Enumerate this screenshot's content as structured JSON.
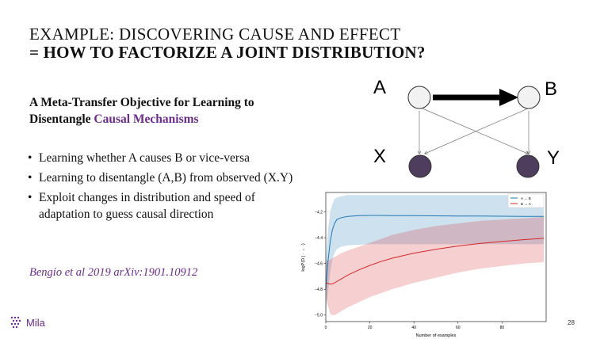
{
  "slide": {
    "title_line1": "EXAMPLE: DISCOVERING CAUSE AND EFFECT",
    "title_line2": "= HOW TO FACTORIZE A JOINT DISTRIBUTION?",
    "subtitle_line1": "A Meta-Transfer Objective for Learning to",
    "subtitle_line2_plain": "Disentangle ",
    "subtitle_line2_accent": "Causal Mechanisms",
    "bullets": [
      "Learning whether A causes B or vice-versa",
      "Learning to disentangle (A,B) from observed (X.Y)",
      "Exploit changes in distribution and speed of adaptation to guess causal direction"
    ],
    "bullet_glyph": "•",
    "citation": "Bengio et al 2019 arXiv:1901.10912",
    "logo_text": "Mila",
    "page_number": "28",
    "accent_color": "#6b2c8c"
  },
  "diagram": {
    "nodes": {
      "a": "A",
      "b": "B",
      "x": "X",
      "y": "Y"
    },
    "observed_node_color": "#4e3d5c",
    "latent_node_color": "#f2f2f2"
  },
  "chart_data": {
    "type": "line",
    "title": "",
    "xlabel": "Number of examples",
    "ylabel": "logP(D | · → ·)",
    "xlim": [
      0,
      100
    ],
    "ylim": [
      -5.05,
      -4.05
    ],
    "xticks": [
      0,
      20,
      40,
      60,
      80
    ],
    "yticks": [
      -5.0,
      -4.8,
      -4.6,
      -4.4,
      -4.2
    ],
    "ytick_labels": [
      "−5.0",
      "−4.8",
      "−4.6",
      "−4.4",
      "−4.2"
    ],
    "x": [
      0,
      1,
      2,
      3,
      4,
      5,
      7,
      10,
      15,
      20,
      25,
      30,
      40,
      50,
      60,
      70,
      80,
      90,
      99
    ],
    "series": [
      {
        "name": "A → B",
        "color": "#1f77b4",
        "values": [
          -4.8,
          -4.58,
          -4.43,
          -4.34,
          -4.29,
          -4.26,
          -4.245,
          -4.235,
          -4.23,
          -4.228,
          -4.228,
          -4.229,
          -4.23,
          -4.231,
          -4.232,
          -4.233,
          -4.234,
          -4.235,
          -4.236
        ],
        "band_lower": [
          -5.0,
          -4.82,
          -4.67,
          -4.57,
          -4.52,
          -4.49,
          -4.47,
          -4.46,
          -4.455,
          -4.45,
          -4.45,
          -4.45,
          -4.45,
          -4.45,
          -4.45,
          -4.45,
          -4.45,
          -4.45,
          -4.45
        ],
        "band_upper": [
          -4.58,
          -4.34,
          -4.2,
          -4.14,
          -4.1,
          -4.09,
          -4.08,
          -4.07,
          -4.07,
          -4.07,
          -4.07,
          -4.07,
          -4.07,
          -4.07,
          -4.07,
          -4.07,
          -4.07,
          -4.07,
          -4.07
        ]
      },
      {
        "name": "B → A",
        "color": "#d62728",
        "values": [
          -4.75,
          -4.755,
          -4.76,
          -4.758,
          -4.75,
          -4.74,
          -4.72,
          -4.69,
          -4.65,
          -4.615,
          -4.585,
          -4.56,
          -4.52,
          -4.49,
          -4.465,
          -4.445,
          -4.43,
          -4.415,
          -4.405
        ],
        "band_lower": [
          -4.85,
          -4.93,
          -4.99,
          -5.0,
          -5.0,
          -4.99,
          -4.97,
          -4.94,
          -4.9,
          -4.86,
          -4.83,
          -4.8,
          -4.75,
          -4.71,
          -4.67,
          -4.64,
          -4.62,
          -4.6,
          -4.59
        ],
        "band_upper": [
          -4.58,
          -4.58,
          -4.57,
          -4.56,
          -4.55,
          -4.54,
          -4.52,
          -4.5,
          -4.47,
          -4.44,
          -4.41,
          -4.38,
          -4.34,
          -4.31,
          -4.29,
          -4.27,
          -4.26,
          -4.25,
          -4.24
        ]
      }
    ],
    "legend_location": "top-right"
  }
}
